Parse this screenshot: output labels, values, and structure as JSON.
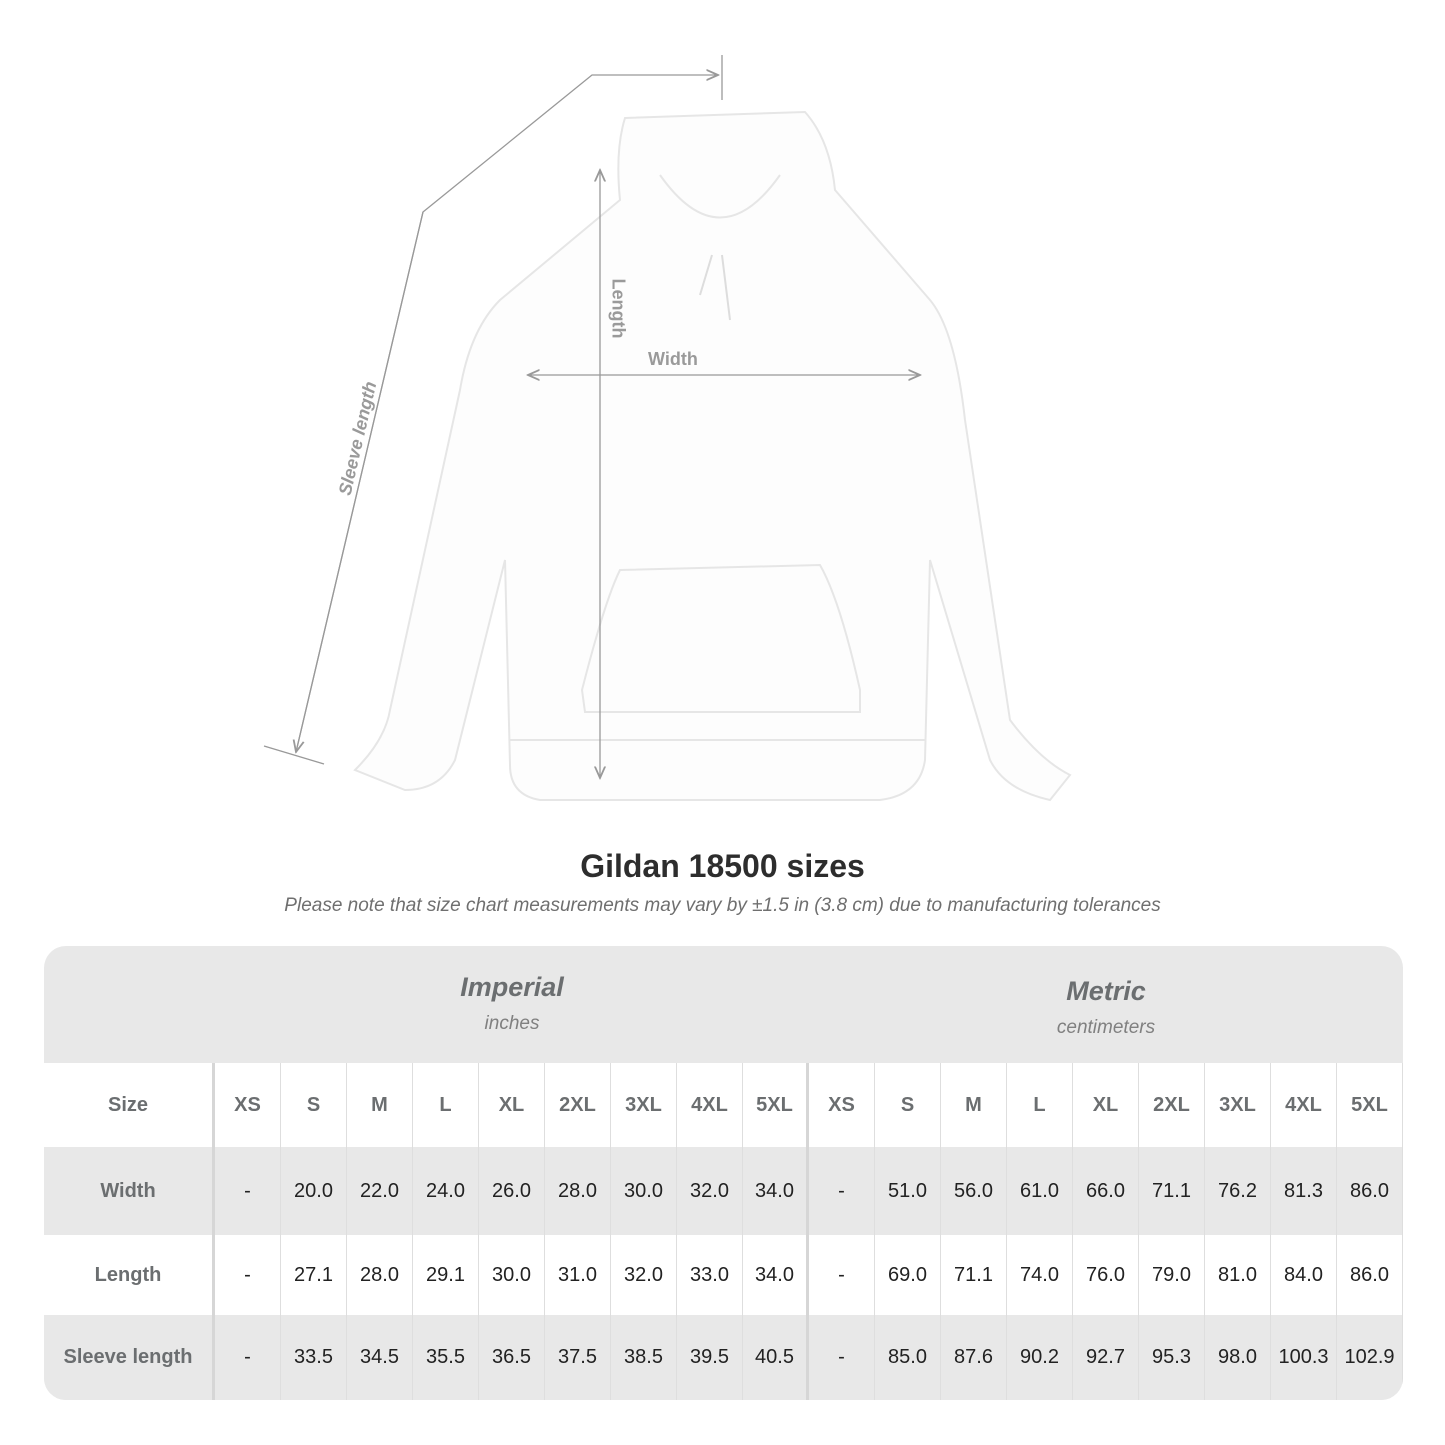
{
  "diagram": {
    "labels": {
      "sleeve": "Sleeve length",
      "length": "Length",
      "width": "Width"
    },
    "line_color": "#999999"
  },
  "title": "Gildan 18500 sizes",
  "subtitle": "Please note that size chart measurements may vary by ±1.5 in (3.8 cm) due to manufacturing tolerances",
  "table": {
    "imperial": {
      "name": "Imperial",
      "unit": "inches"
    },
    "metric": {
      "name": "Metric",
      "unit": "centimeters"
    },
    "size_label": "Size",
    "sizes": [
      "XS",
      "S",
      "M",
      "L",
      "XL",
      "2XL",
      "3XL",
      "4XL",
      "5XL"
    ],
    "rows": [
      {
        "label": "Width",
        "imperial": [
          "-",
          "20.0",
          "22.0",
          "24.0",
          "26.0",
          "28.0",
          "30.0",
          "32.0",
          "34.0"
        ],
        "metric": [
          "-",
          "51.0",
          "56.0",
          "61.0",
          "66.0",
          "71.1",
          "76.2",
          "81.3",
          "86.0"
        ]
      },
      {
        "label": "Length",
        "imperial": [
          "-",
          "27.1",
          "28.0",
          "29.1",
          "30.0",
          "31.0",
          "32.0",
          "33.0",
          "34.0"
        ],
        "metric": [
          "-",
          "69.0",
          "71.1",
          "74.0",
          "76.0",
          "79.0",
          "81.0",
          "84.0",
          "86.0"
        ]
      },
      {
        "label": "Sleeve length",
        "imperial": [
          "-",
          "33.5",
          "34.5",
          "35.5",
          "36.5",
          "37.5",
          "38.5",
          "39.5",
          "40.5"
        ],
        "metric": [
          "-",
          "85.0",
          "87.6",
          "90.2",
          "92.7",
          "95.3",
          "98.0",
          "100.3",
          "102.9"
        ]
      }
    ]
  }
}
